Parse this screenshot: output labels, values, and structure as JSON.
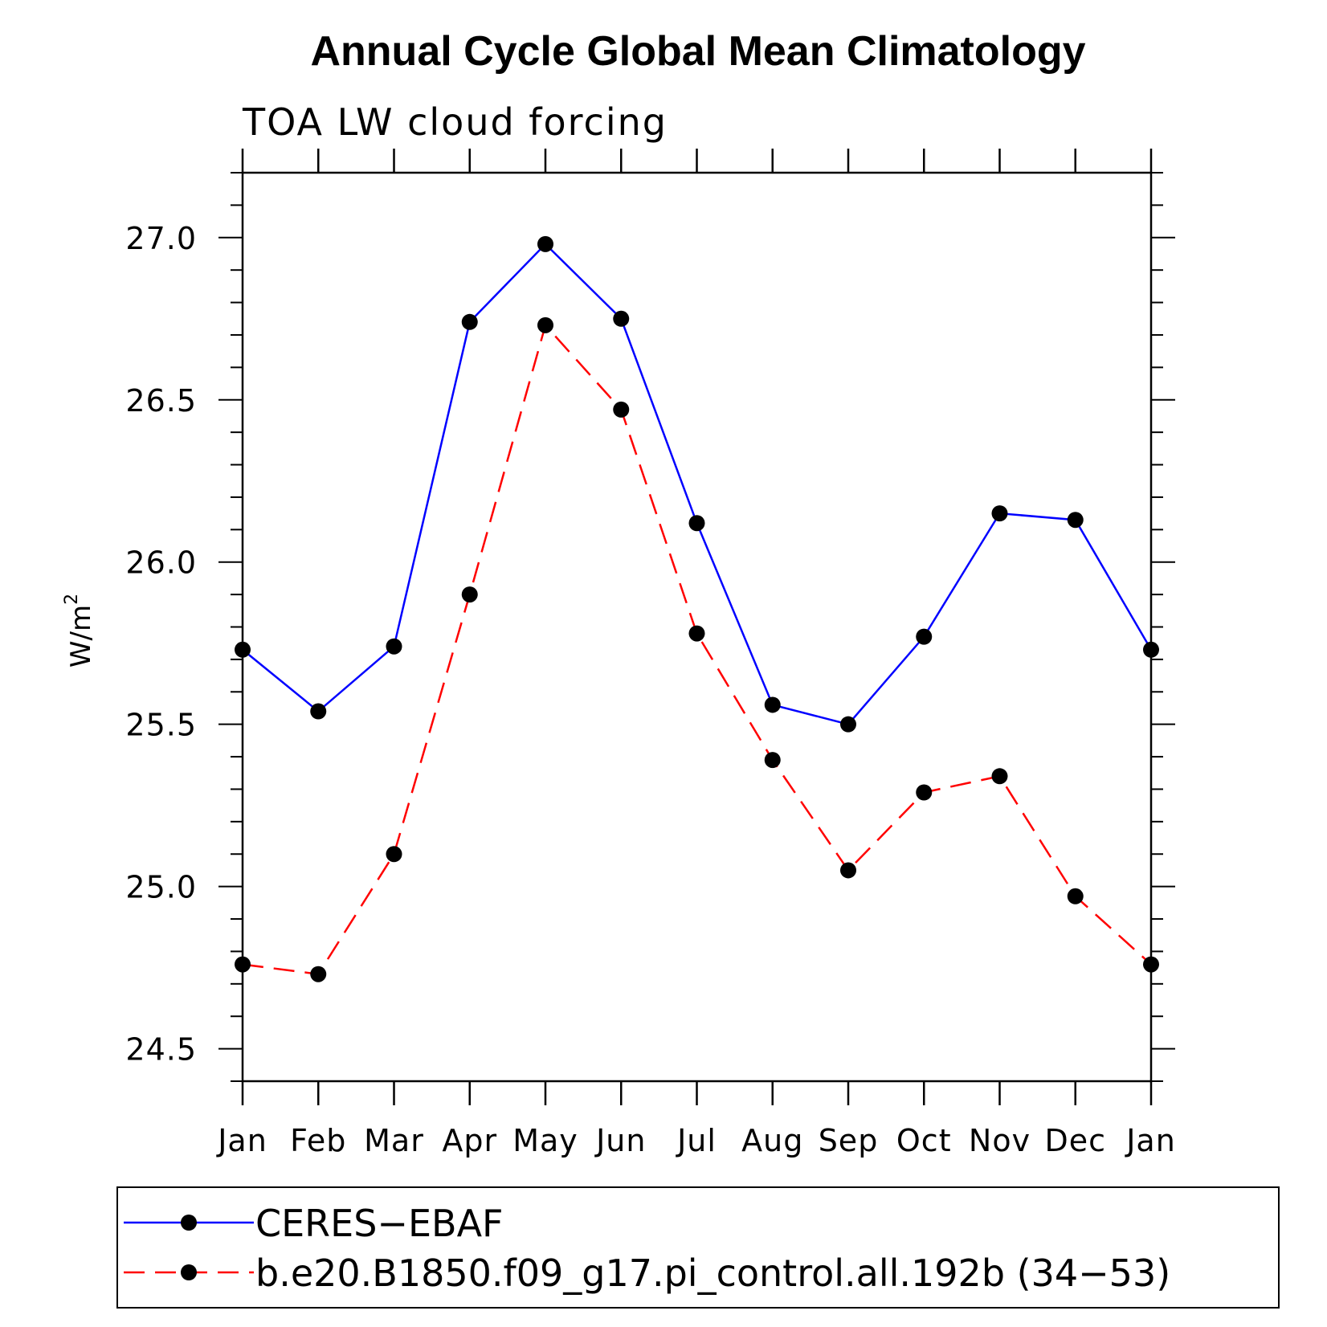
{
  "chart_data": {
    "type": "line",
    "title": "Annual Cycle Global Mean Climatology",
    "subtitle": "TOA LW cloud forcing",
    "xlabel": "",
    "ylabel": "W/m",
    "ylabel_superscript": "2",
    "categories": [
      "Jan",
      "Feb",
      "Mar",
      "Apr",
      "May",
      "Jun",
      "Jul",
      "Aug",
      "Sep",
      "Oct",
      "Nov",
      "Dec",
      "Jan"
    ],
    "yticks": [
      "24.5",
      "25.0",
      "25.5",
      "26.0",
      "26.5",
      "27.0"
    ],
    "ylim": [
      24.4,
      27.2
    ],
    "grid": false,
    "legend_position": "bottom",
    "series": [
      {
        "name": "CERES−EBAF",
        "color": "#0000ff",
        "dash": "solid",
        "values": [
          25.73,
          25.54,
          25.74,
          26.74,
          26.98,
          26.75,
          26.12,
          25.56,
          25.5,
          25.77,
          26.15,
          26.13,
          25.73
        ]
      },
      {
        "name": "b.e20.B1850.f09_g17.pi_control.all.192b (34−53)",
        "color": "#ff0000",
        "dash": "dashed",
        "values": [
          24.76,
          24.73,
          25.1,
          25.9,
          26.73,
          26.47,
          25.78,
          25.39,
          25.05,
          25.29,
          25.34,
          24.97,
          24.76
        ]
      }
    ]
  }
}
